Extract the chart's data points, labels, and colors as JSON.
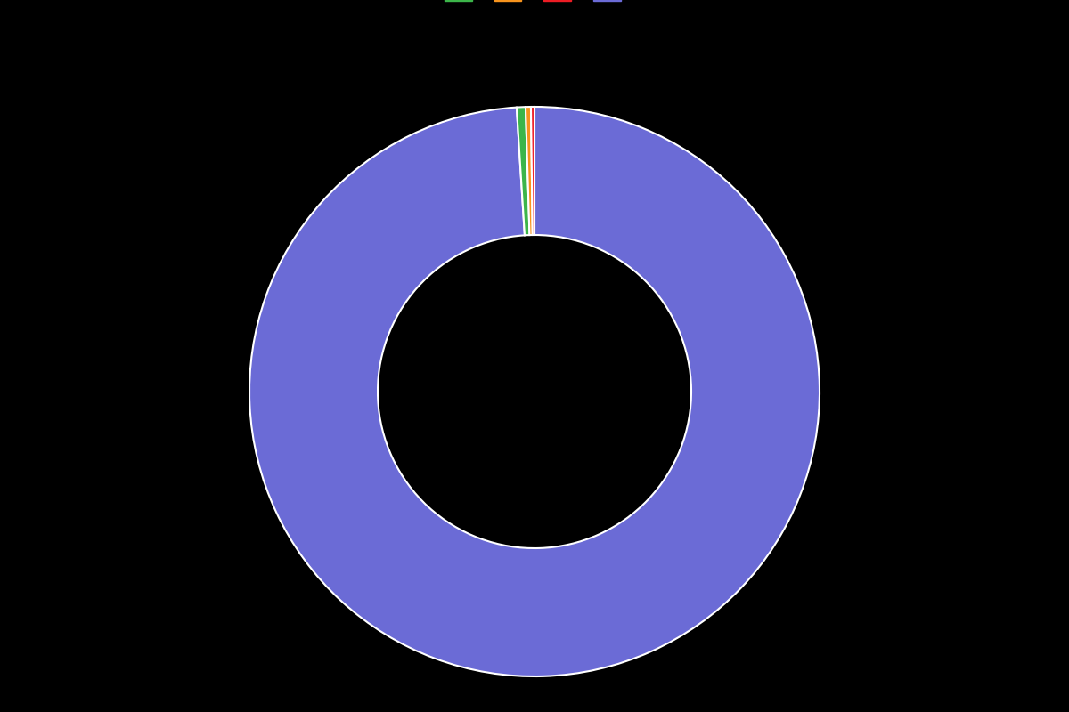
{
  "values": [
    99.0,
    0.5,
    0.3,
    0.2
  ],
  "colors": [
    "#6b6bd6",
    "#3cb54a",
    "#f7941d",
    "#ed1c24"
  ],
  "legend_colors": [
    "#3cb54a",
    "#f7941d",
    "#ed1c24",
    "#6b6bd6"
  ],
  "legend_labels": [
    "",
    "",
    "",
    ""
  ],
  "background_color": "#000000",
  "wedge_edge_color": "#ffffff",
  "wedge_edge_width": 1.5,
  "donut_width": 0.45,
  "startangle": 90,
  "figsize": [
    12,
    8
  ],
  "dpi": 100
}
